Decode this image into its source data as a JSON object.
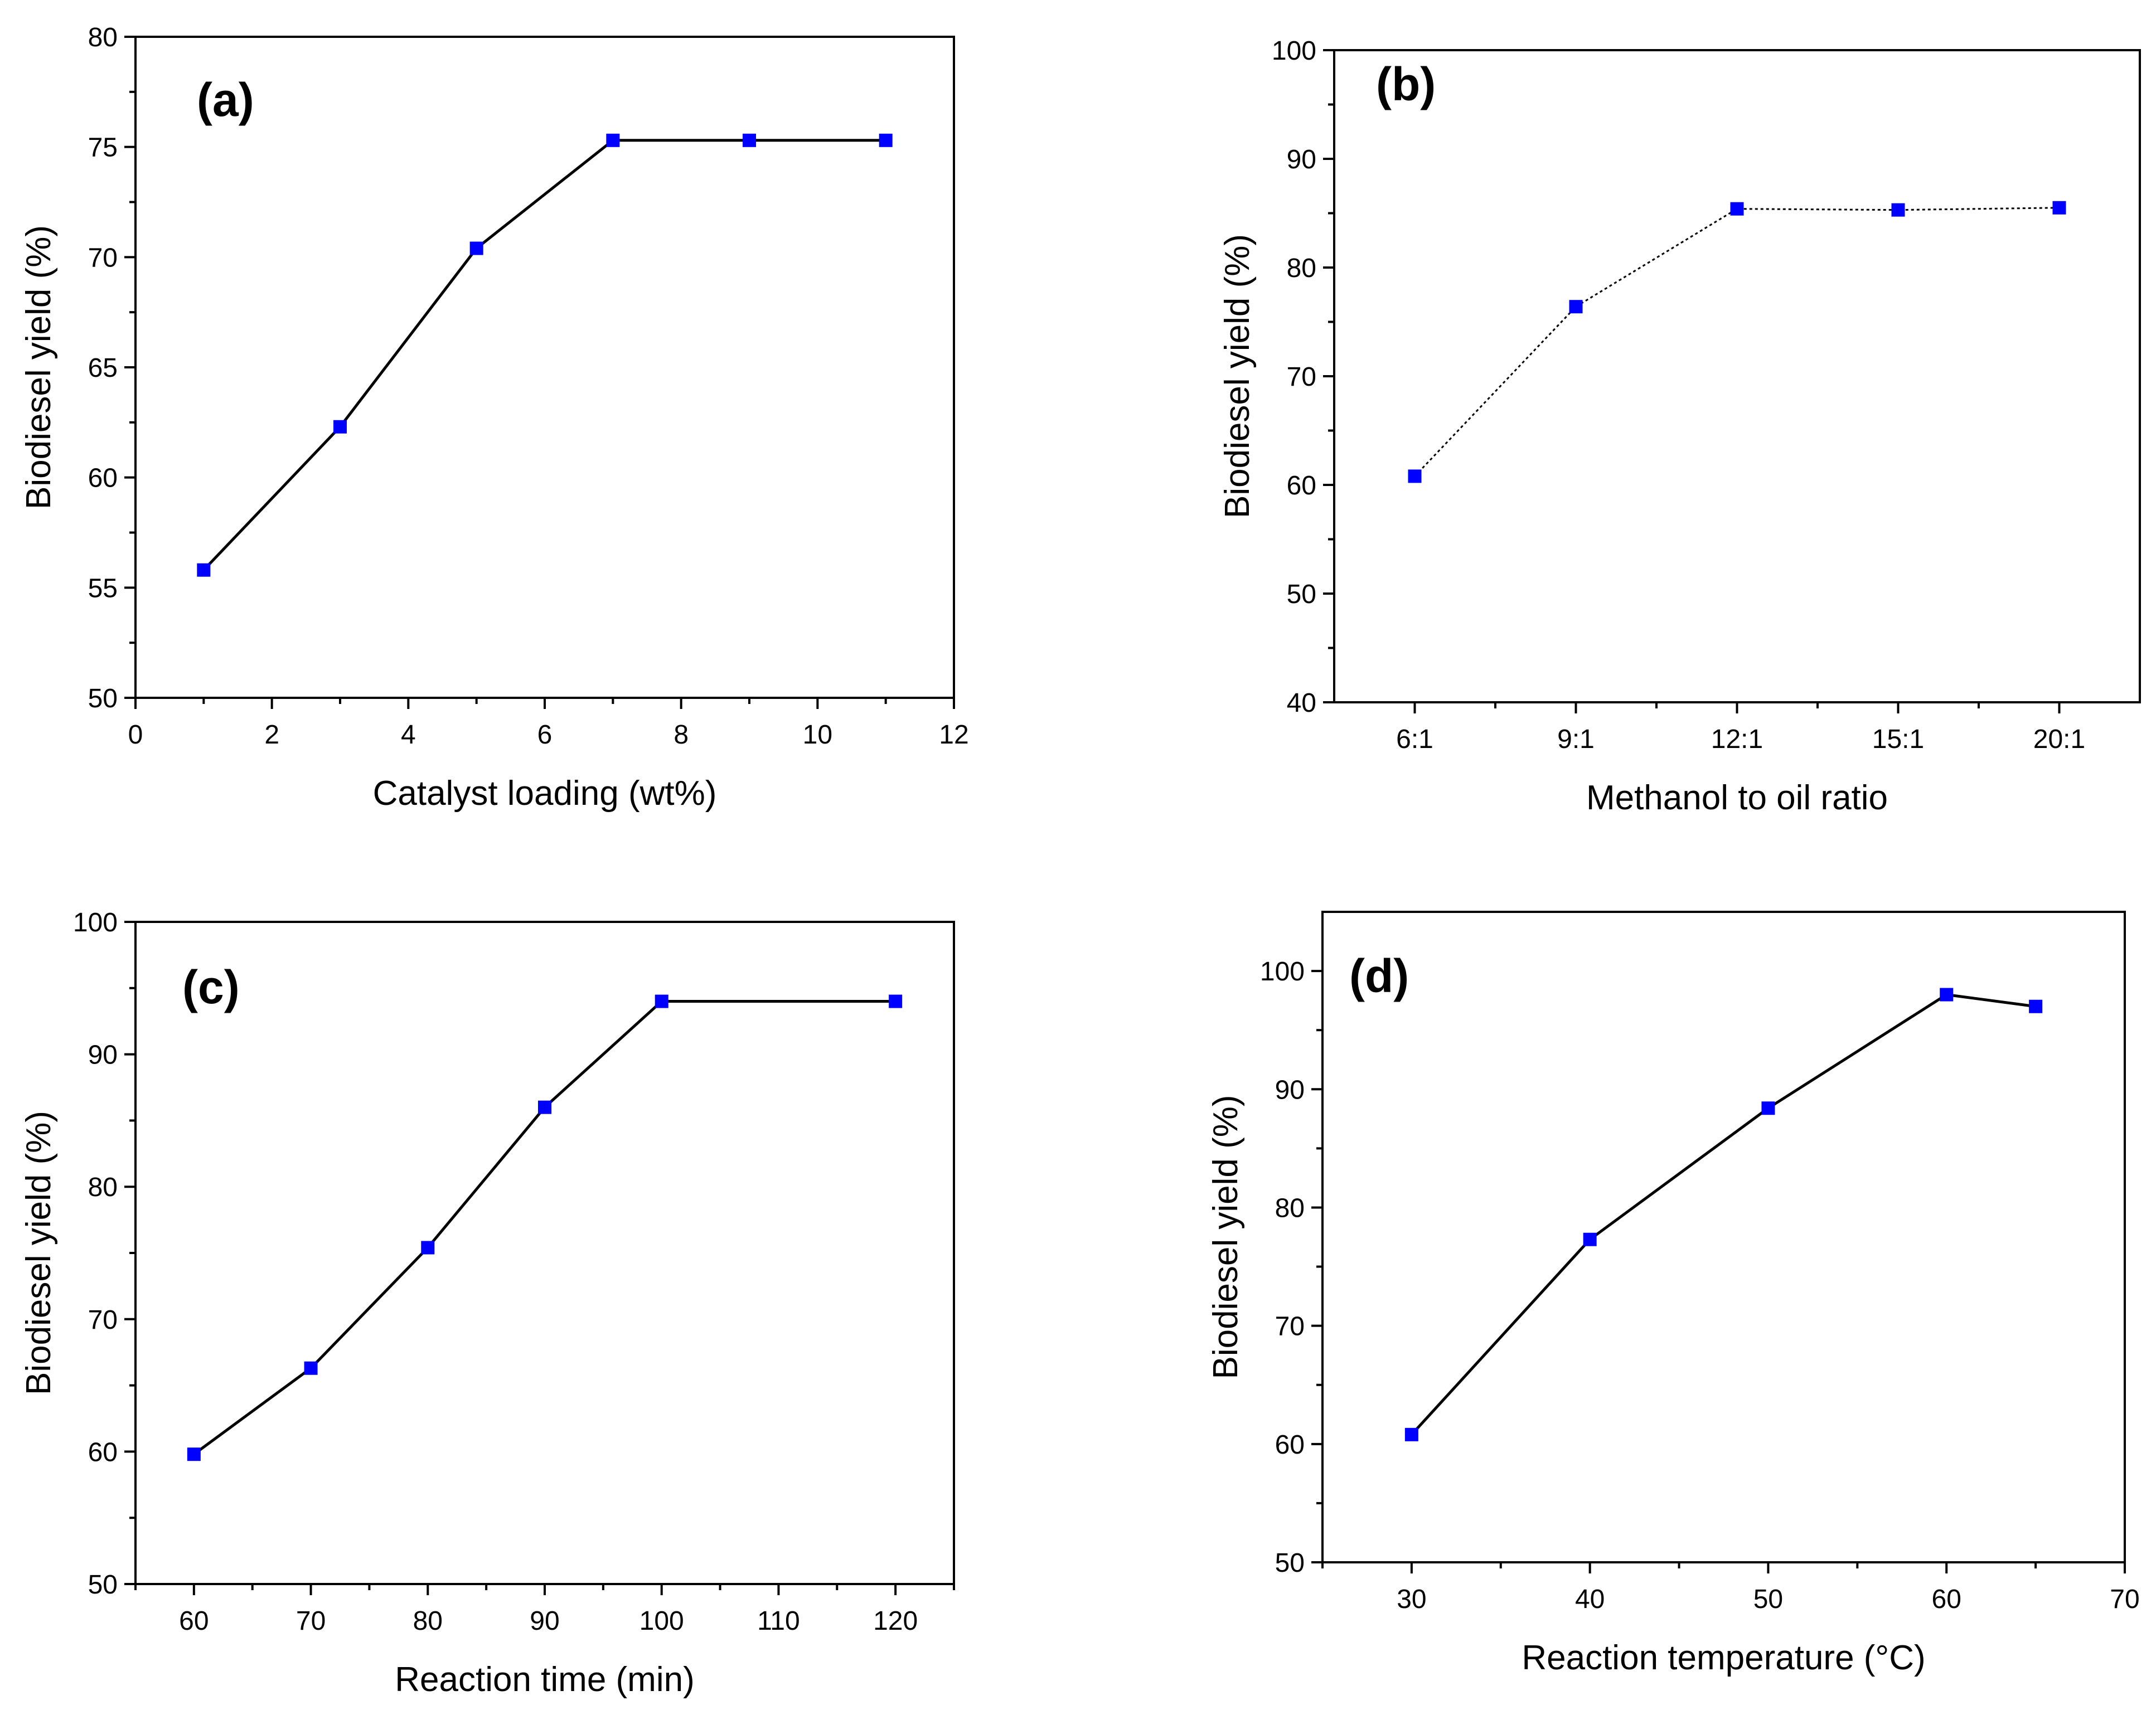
{
  "chart_data": [
    {
      "type": "line",
      "panel_label": "(a)",
      "xlabel": "Catalyst loading (wt%)",
      "ylabel": "Biodiesel yield (%)",
      "xlim": [
        0,
        12
      ],
      "ylim": [
        50,
        80
      ],
      "xticks": [
        0,
        2,
        4,
        6,
        8,
        10,
        12
      ],
      "yticks": [
        50,
        55,
        60,
        65,
        70,
        75,
        80
      ],
      "line_style": "solid",
      "series": [
        {
          "x": [
            1,
            3,
            5,
            7,
            9,
            11
          ],
          "values": [
            55.8,
            62.3,
            70.4,
            75.3,
            75.3,
            75.3
          ]
        }
      ]
    },
    {
      "type": "line",
      "panel_label": "(b)",
      "xlabel": "Methanol to oil ratio",
      "ylabel": "Biodiesel yield (%)",
      "categories": [
        "6:1",
        "9:1",
        "12:1",
        "15:1",
        "20:1"
      ],
      "ylim": [
        40,
        100
      ],
      "yticks": [
        40,
        50,
        60,
        70,
        80,
        90,
        100
      ],
      "line_style": "dotted",
      "series": [
        {
          "values": [
            60.8,
            76.4,
            85.4,
            85.3,
            85.5
          ]
        }
      ]
    },
    {
      "type": "line",
      "panel_label": "(c)",
      "xlabel": "Reaction time (min)",
      "ylabel": "Biodiesel yield (%)",
      "xlim": [
        55,
        125
      ],
      "ylim": [
        50,
        100
      ],
      "xticks": [
        60,
        70,
        80,
        90,
        100,
        110,
        120
      ],
      "yticks": [
        50,
        60,
        70,
        80,
        90,
        100
      ],
      "line_style": "solid",
      "series": [
        {
          "x": [
            60,
            70,
            80,
            90,
            100,
            120
          ],
          "values": [
            59.8,
            66.3,
            75.4,
            86.0,
            94.0,
            94.0
          ]
        }
      ]
    },
    {
      "type": "line",
      "panel_label": "(d)",
      "xlabel": "Reaction temperature (°C)",
      "ylabel": "Biodiesel yield (%)",
      "xlim": [
        25,
        70
      ],
      "ylim": [
        50,
        105
      ],
      "xticks": [
        30,
        40,
        50,
        60,
        70
      ],
      "yticks": [
        50,
        60,
        70,
        80,
        90,
        100
      ],
      "line_style": "solid",
      "series": [
        {
          "x": [
            30,
            40,
            50,
            60,
            65
          ],
          "values": [
            60.8,
            77.3,
            88.4,
            98.0,
            97.0
          ]
        }
      ]
    }
  ],
  "colors": {
    "marker": "#0000ff",
    "line": "#000000",
    "axis": "#000000"
  }
}
